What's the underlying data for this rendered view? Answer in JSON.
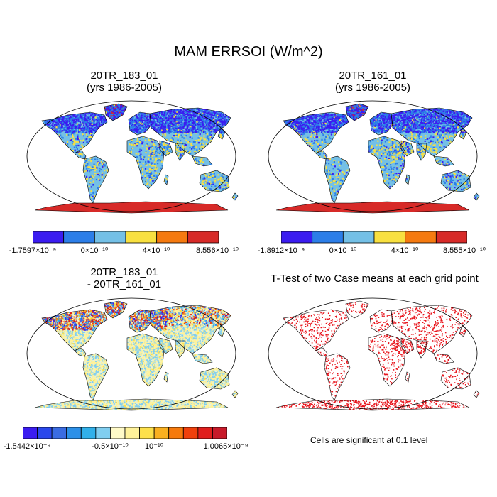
{
  "figure": {
    "title": "MAM ERRSOI (W/m^2)",
    "panels": [
      {
        "id": "case1",
        "title_line1": "20TR_183_01",
        "title_line2": "(yrs 1986-2005)",
        "colorbar": {
          "colors": [
            "#3b1cf0",
            "#2c7ee8",
            "#74c0e6",
            "#f8e040",
            "#f57a10",
            "#d72a28"
          ],
          "labels": [
            "-1.7597×10⁻⁹",
            "0×10⁻¹⁰",
            "4×10⁻¹⁰",
            "8.556×10⁻¹⁰"
          ]
        }
      },
      {
        "id": "case2",
        "title_line1": "20TR_161_01",
        "title_line2": "(yrs 1986-2005)",
        "colorbar": {
          "colors": [
            "#3b1cf0",
            "#2c7ee8",
            "#74c0e6",
            "#f8e040",
            "#f57a10",
            "#d72a28"
          ],
          "labels": [
            "-1.8912×10⁻⁹",
            "0×10⁻¹⁰",
            "4×10⁻¹⁰",
            "8.555×10⁻¹⁰"
          ]
        }
      },
      {
        "id": "difference",
        "title_line1": "20TR_183_01",
        "title_line2": "- 20TR_161_01",
        "colorbar": {
          "colors": [
            "#3b1cf0",
            "#2a48ec",
            "#3a6ce2",
            "#2c90e8",
            "#30b0ea",
            "#80cef0",
            "#fffac8",
            "#fff29a",
            "#fde04a",
            "#fab020",
            "#f67a0c",
            "#f0400c",
            "#e01e1c",
            "#c81a2a"
          ],
          "labels": [
            "-1.5442×10⁻⁹",
            "-0.5×10⁻¹⁰",
            "10⁻¹⁰",
            "1.0065×10⁻⁹"
          ]
        }
      },
      {
        "id": "ttest",
        "title_line1": "T-Test of two Case means at each grid point",
        "note": "Cells are significant at 0.1 level"
      }
    ]
  }
}
